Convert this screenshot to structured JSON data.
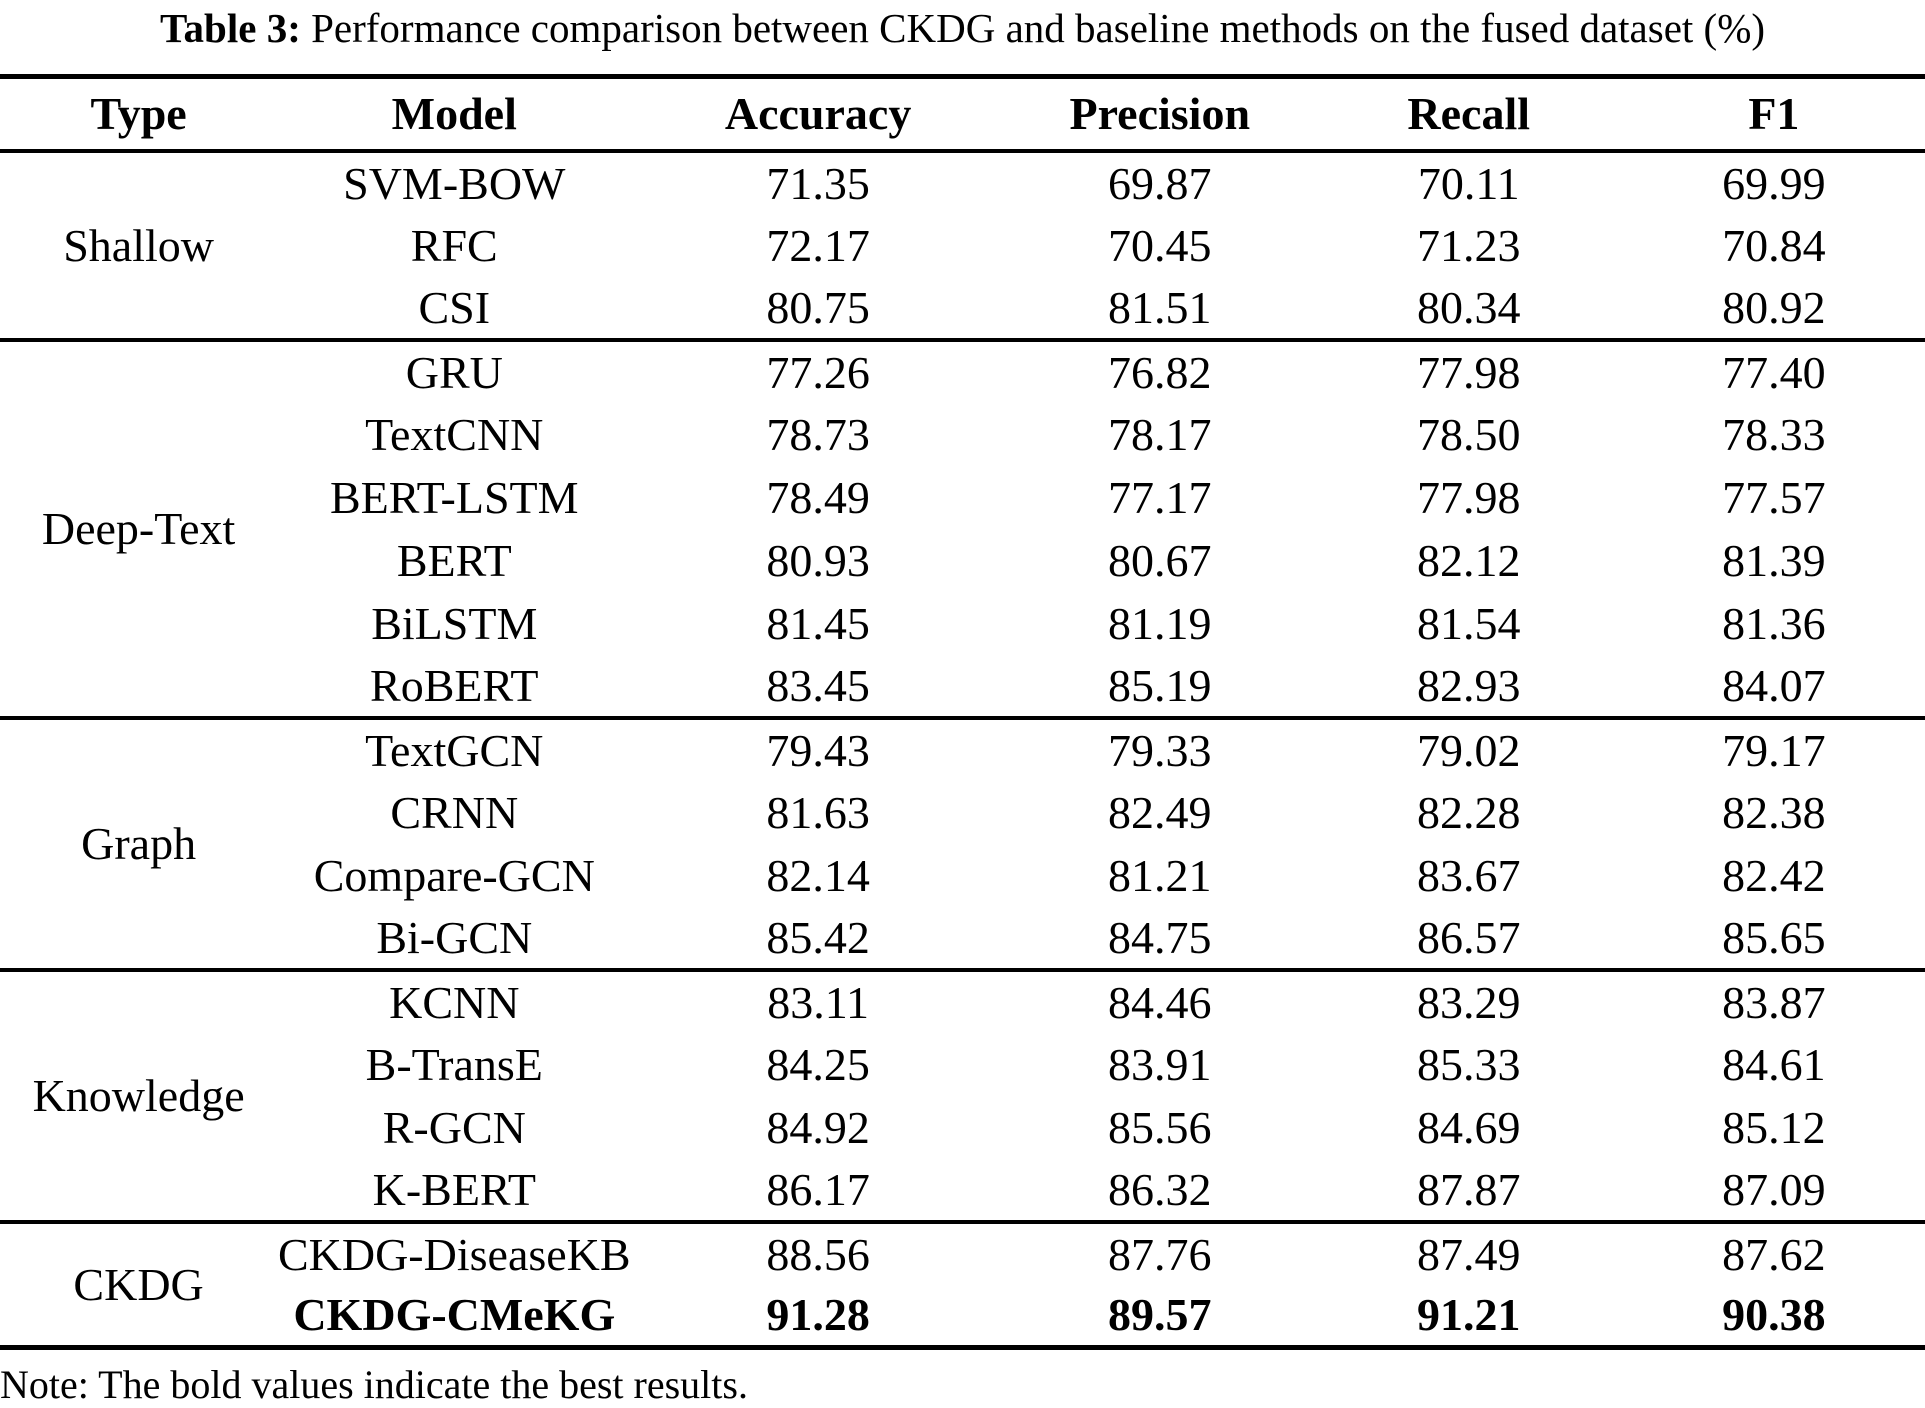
{
  "caption": {
    "label": "Table 3:",
    "text": " Performance comparison between CKDG and baseline methods on the fused dataset (%)"
  },
  "note": "Note: The bold values indicate the best results.",
  "colors": {
    "text": "#000000",
    "background": "#ffffff",
    "rule": "#000000"
  },
  "table": {
    "columns": [
      "Type",
      "Model",
      "Accuracy",
      "Precision",
      "Recall",
      "F1"
    ],
    "sections": [
      {
        "type": "Shallow",
        "rows": [
          {
            "model": "SVM-BOW",
            "values": [
              "71.35",
              "69.87",
              "70.11",
              "69.99"
            ],
            "bold": false
          },
          {
            "model": "RFC",
            "values": [
              "72.17",
              "70.45",
              "71.23",
              "70.84"
            ],
            "bold": false
          },
          {
            "model": "CSI",
            "values": [
              "80.75",
              "81.51",
              "80.34",
              "80.92"
            ],
            "bold": false
          }
        ]
      },
      {
        "type": "Deep-Text",
        "rows": [
          {
            "model": "GRU",
            "values": [
              "77.26",
              "76.82",
              "77.98",
              "77.40"
            ],
            "bold": false
          },
          {
            "model": "TextCNN",
            "values": [
              "78.73",
              "78.17",
              "78.50",
              "78.33"
            ],
            "bold": false
          },
          {
            "model": "BERT-LSTM",
            "values": [
              "78.49",
              "77.17",
              "77.98",
              "77.57"
            ],
            "bold": false
          },
          {
            "model": "BERT",
            "values": [
              "80.93",
              "80.67",
              "82.12",
              "81.39"
            ],
            "bold": false
          },
          {
            "model": "BiLSTM",
            "values": [
              "81.45",
              "81.19",
              "81.54",
              "81.36"
            ],
            "bold": false
          },
          {
            "model": "RoBERT",
            "values": [
              "83.45",
              "85.19",
              "82.93",
              "84.07"
            ],
            "bold": false
          }
        ]
      },
      {
        "type": "Graph",
        "rows": [
          {
            "model": "TextGCN",
            "values": [
              "79.43",
              "79.33",
              "79.02",
              "79.17"
            ],
            "bold": false
          },
          {
            "model": "CRNN",
            "values": [
              "81.63",
              "82.49",
              "82.28",
              "82.38"
            ],
            "bold": false
          },
          {
            "model": "Compare-GCN",
            "values": [
              "82.14",
              "81.21",
              "83.67",
              "82.42"
            ],
            "bold": false
          },
          {
            "model": "Bi-GCN",
            "values": [
              "85.42",
              "84.75",
              "86.57",
              "85.65"
            ],
            "bold": false
          }
        ]
      },
      {
        "type": "Knowledge",
        "rows": [
          {
            "model": "KCNN",
            "values": [
              "83.11",
              "84.46",
              "83.29",
              "83.87"
            ],
            "bold": false
          },
          {
            "model": "B-TransE",
            "values": [
              "84.25",
              "83.91",
              "85.33",
              "84.61"
            ],
            "bold": false
          },
          {
            "model": "R-GCN",
            "values": [
              "84.92",
              "85.56",
              "84.69",
              "85.12"
            ],
            "bold": false
          },
          {
            "model": "K-BERT",
            "values": [
              "86.17",
              "86.32",
              "87.87",
              "87.09"
            ],
            "bold": false
          }
        ]
      },
      {
        "type": "CKDG",
        "rows": [
          {
            "model": "CKDG-DiseaseKB",
            "values": [
              "88.56",
              "87.76",
              "87.49",
              "87.62"
            ],
            "bold": false
          },
          {
            "model": "CKDG-CMeKG",
            "values": [
              "91.28",
              "89.57",
              "91.21",
              "90.38"
            ],
            "bold": true
          }
        ]
      }
    ]
  }
}
